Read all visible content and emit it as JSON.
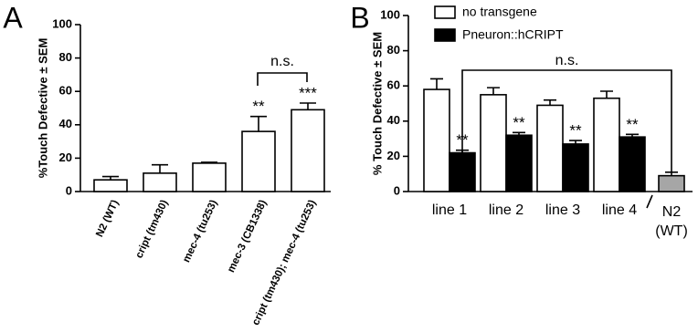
{
  "chart_data": [
    {
      "type": "bar",
      "panel": "A",
      "y_label": "%Touch  Defective ± SEM",
      "categories": [
        "N2 (WT)",
        "cript (tm430)",
        "mec-4 (tu253)",
        "mec-3 (CB1338)",
        "cript (tm430); mec-4 (tu253)"
      ],
      "values": [
        7,
        11,
        17,
        36,
        49
      ],
      "errors": [
        2,
        5,
        0.5,
        9,
        4
      ],
      "annotations": [
        null,
        null,
        null,
        "**",
        "***"
      ],
      "bracket_label": "n.s.",
      "color": "#ffffff",
      "ylim": [
        0,
        100
      ],
      "yticks": [
        0,
        20,
        40,
        60,
        80,
        100
      ]
    },
    {
      "type": "grouped_bar",
      "panel": "B",
      "y_label": "% Touch  Defective ± SEM",
      "categories": [
        "line 1",
        "line 2",
        "line 3",
        "line 4"
      ],
      "series": [
        {
          "name": "no transgene",
          "color": "#ffffff",
          "values": [
            58,
            55,
            49,
            53
          ],
          "errors": [
            6,
            4,
            3,
            4
          ],
          "annotations": [
            null,
            null,
            null,
            null
          ]
        },
        {
          "name": "Pneuron::hCRIPT",
          "color": "#000000",
          "values": [
            22,
            32,
            27,
            31
          ],
          "errors": [
            1.5,
            1.5,
            2,
            1.5
          ],
          "annotations": [
            "**",
            "**",
            "**",
            "**"
          ]
        }
      ],
      "control": {
        "label": [
          "N2",
          "(WT)"
        ],
        "value": 9,
        "error": 2,
        "color": "#a6a6a6"
      },
      "bracket_label": "n.s.",
      "legend": "top",
      "ylim": [
        0,
        100
      ],
      "yticks": [
        0,
        20,
        40,
        60,
        80,
        100
      ]
    }
  ]
}
